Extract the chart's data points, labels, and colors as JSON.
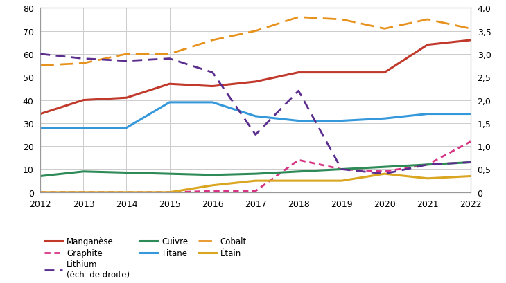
{
  "years": [
    2012,
    2013,
    2014,
    2015,
    2016,
    2017,
    2018,
    2019,
    2020,
    2021,
    2022
  ],
  "manganese": [
    34,
    40,
    41,
    47,
    46,
    48,
    52,
    52,
    52,
    64,
    66
  ],
  "cuivre": [
    7,
    9,
    8.5,
    8,
    7.5,
    8,
    9,
    10,
    11,
    12,
    13
  ],
  "cobalt": [
    55,
    56,
    60,
    60,
    66,
    70,
    76,
    75,
    71,
    75,
    71
  ],
  "graphite": [
    0,
    0,
    0,
    0,
    0.5,
    0.5,
    14,
    10,
    9,
    12,
    22
  ],
  "titane": [
    28,
    28,
    28,
    39,
    39,
    33,
    31,
    31,
    32,
    34,
    34
  ],
  "etain": [
    0,
    0,
    0,
    0,
    3,
    5,
    5,
    5,
    8,
    6,
    7
  ],
  "lithium_right": [
    3.0,
    2.9,
    2.85,
    2.9,
    2.6,
    1.25,
    2.2,
    0.5,
    0.4,
    0.6,
    0.65
  ],
  "colors": {
    "manganese": "#c0392b",
    "cuivre": "#2e8b57",
    "cobalt": "#e8921e",
    "graphite": "#d63384",
    "titane": "#3498db",
    "etain": "#daa520",
    "lithium": "#5b2d8e"
  },
  "ylim_left": [
    0,
    80
  ],
  "ylim_right": [
    0,
    4.0
  ],
  "yticks_left": [
    0,
    10,
    20,
    30,
    40,
    50,
    60,
    70,
    80
  ],
  "yticks_right": [
    0,
    0.5,
    1.0,
    1.5,
    2.0,
    2.5,
    3.0,
    3.5,
    4.0
  ],
  "ytick_right_labels": [
    "0",
    "0,5",
    "1,0",
    "1,5",
    "2,0",
    "2,5",
    "3,0",
    "3,5",
    "4,0"
  ],
  "figsize": [
    7.3,
    4.1
  ],
  "dpi": 100
}
